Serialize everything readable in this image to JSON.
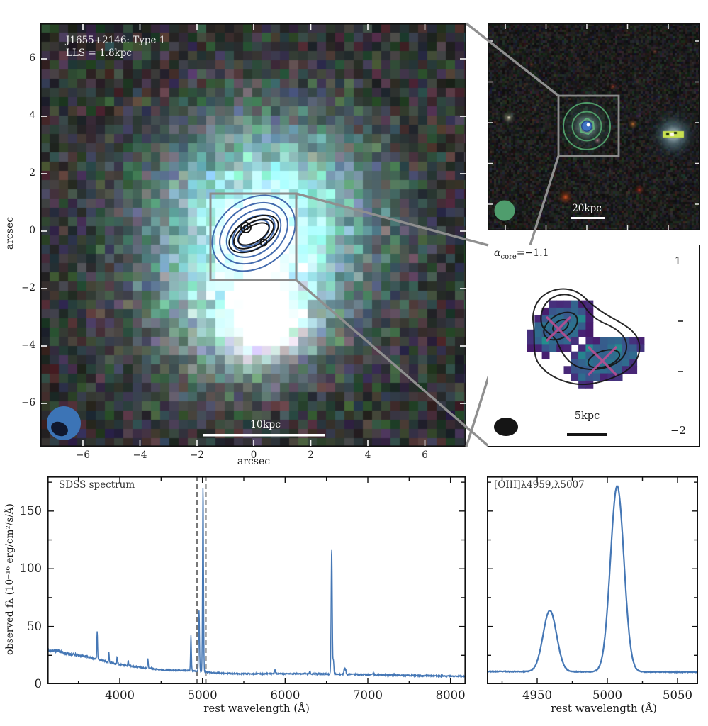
{
  "panels": {
    "galaxy": {
      "annotation_line1": "J1655+2146: Type 1",
      "annotation_line2": "LLS = 1.8kpc",
      "xlabel": "arcsec",
      "ylabel": "arcsec",
      "xtick_labels": [
        "−6",
        "−4",
        "−2",
        "0",
        "2",
        "4",
        "6"
      ],
      "ytick_labels": [
        "6",
        "4",
        "2",
        "0",
        "−2",
        "−4",
        "−6"
      ],
      "scalebar_label": "10kpc"
    },
    "field": {
      "scalebar_label": "20kpc"
    },
    "spectral_index": {
      "alpha_symbol": "α",
      "alpha_sub": "core",
      "alpha_value": "=−1.1",
      "scalebar_label": "5kpc",
      "colorbar_max_label": "1",
      "colorbar_min_label": "−2",
      "colorbar_range": [
        -2,
        1
      ]
    }
  },
  "colors": {
    "spectrum_line": "#4577b5",
    "optical_contours": "#3a64aa",
    "radio_contours": "#151515",
    "field_contours": "#55a76f",
    "x_marker": "#bb4d92",
    "connector_gray": "#8f8f8f",
    "beam_blue": "#3c74b6",
    "beam_green": "#4f9d6d",
    "colorbar_top": "#fde725",
    "colorbar_bottom": "#440154"
  },
  "chart_data": [
    {
      "type": "line",
      "name": "sdss-spectrum",
      "annotation": "SDSS spectrum",
      "xlabel": "rest wavelength (Å)",
      "ylabel": "observed fλ (10⁻¹⁶ erg/cm²/s/Å)",
      "xlim": [
        3126,
        8182
      ],
      "ylim": [
        0,
        180
      ],
      "xticks": [
        4000,
        5000,
        6000,
        7000,
        8000
      ],
      "xtick_labels": [
        "4000",
        "5000",
        "6000",
        "7000",
        "8000"
      ],
      "yticks": [
        0,
        50,
        100,
        150
      ],
      "ytick_labels": [
        "0",
        "50",
        "100",
        "150"
      ],
      "dashed_marker_wavelengths": [
        4934,
        5041
      ],
      "line_color": "#4577b5",
      "continuum_points": [
        [
          3270,
          29
        ],
        [
          3320,
          27
        ],
        [
          3400,
          26
        ],
        [
          3500,
          25
        ],
        [
          3600,
          24
        ],
        [
          3700,
          22
        ],
        [
          3760,
          21
        ],
        [
          3840,
          19.5
        ],
        [
          3950,
          18
        ],
        [
          4050,
          16.5
        ],
        [
          4150,
          15.5
        ],
        [
          4250,
          14.5
        ],
        [
          4350,
          14
        ],
        [
          4500,
          12.5
        ],
        [
          4650,
          12
        ],
        [
          4800,
          12
        ],
        [
          4900,
          11.5
        ],
        [
          5050,
          10.5
        ],
        [
          5200,
          9.5
        ],
        [
          5400,
          9
        ],
        [
          5700,
          9
        ],
        [
          6000,
          9
        ],
        [
          6300,
          9
        ],
        [
          6600,
          8.7
        ],
        [
          6900,
          8.3
        ],
        [
          7200,
          8
        ],
        [
          7600,
          7.4
        ],
        [
          8000,
          7
        ],
        [
          8180,
          6.8
        ]
      ],
      "emission_lines": [
        {
          "center": 3727,
          "amplitude": 25,
          "sigma": 4.5
        },
        {
          "center": 3869,
          "amplitude": 8,
          "sigma": 4
        },
        {
          "center": 3968,
          "amplitude": 6,
          "sigma": 4
        },
        {
          "center": 4102,
          "amplitude": 5,
          "sigma": 4
        },
        {
          "center": 4340,
          "amplitude": 8,
          "sigma": 4.5
        },
        {
          "center": 4861,
          "amplitude": 31,
          "sigma": 5
        },
        {
          "center": 4959,
          "amplitude": 53,
          "sigma": 5.5
        },
        {
          "center": 5007,
          "amplitude": 161,
          "sigma": 5.5
        },
        {
          "center": 5876,
          "amplitude": 3.5,
          "sigma": 6
        },
        {
          "center": 6300,
          "amplitude": 2.5,
          "sigma": 5
        },
        {
          "center": 6563,
          "amplitude": 109,
          "sigma": 6.5
        },
        {
          "center": 6584,
          "amplitude": 12,
          "sigma": 5
        },
        {
          "center": 6716,
          "amplitude": 6,
          "sigma": 5
        },
        {
          "center": 6731,
          "amplitude": 5,
          "sigma": 5
        },
        {
          "center": 7065,
          "amplitude": 2,
          "sigma": 6
        }
      ]
    },
    {
      "type": "line",
      "name": "oiii-zoom",
      "annotation": "[OIII]λ4959,λ5007",
      "xlabel": "rest wavelength (Å)",
      "xlim": [
        4914,
        5065
      ],
      "ylim": [
        0,
        180
      ],
      "xticks": [
        4950,
        5000,
        5050
      ],
      "xtick_labels": [
        "4950",
        "5000",
        "5050"
      ],
      "yticks": [
        0,
        50,
        100,
        150
      ],
      "ytick_labels": [],
      "line_color": "#4577b5",
      "continuum_points": [
        [
          4914,
          11
        ],
        [
          5065,
          10.5
        ]
      ],
      "emission_lines": [
        {
          "center": 4959,
          "amplitude": 53,
          "sigma": 4.8
        },
        {
          "center": 5007,
          "amplitude": 161,
          "sigma": 4.8
        }
      ]
    }
  ]
}
